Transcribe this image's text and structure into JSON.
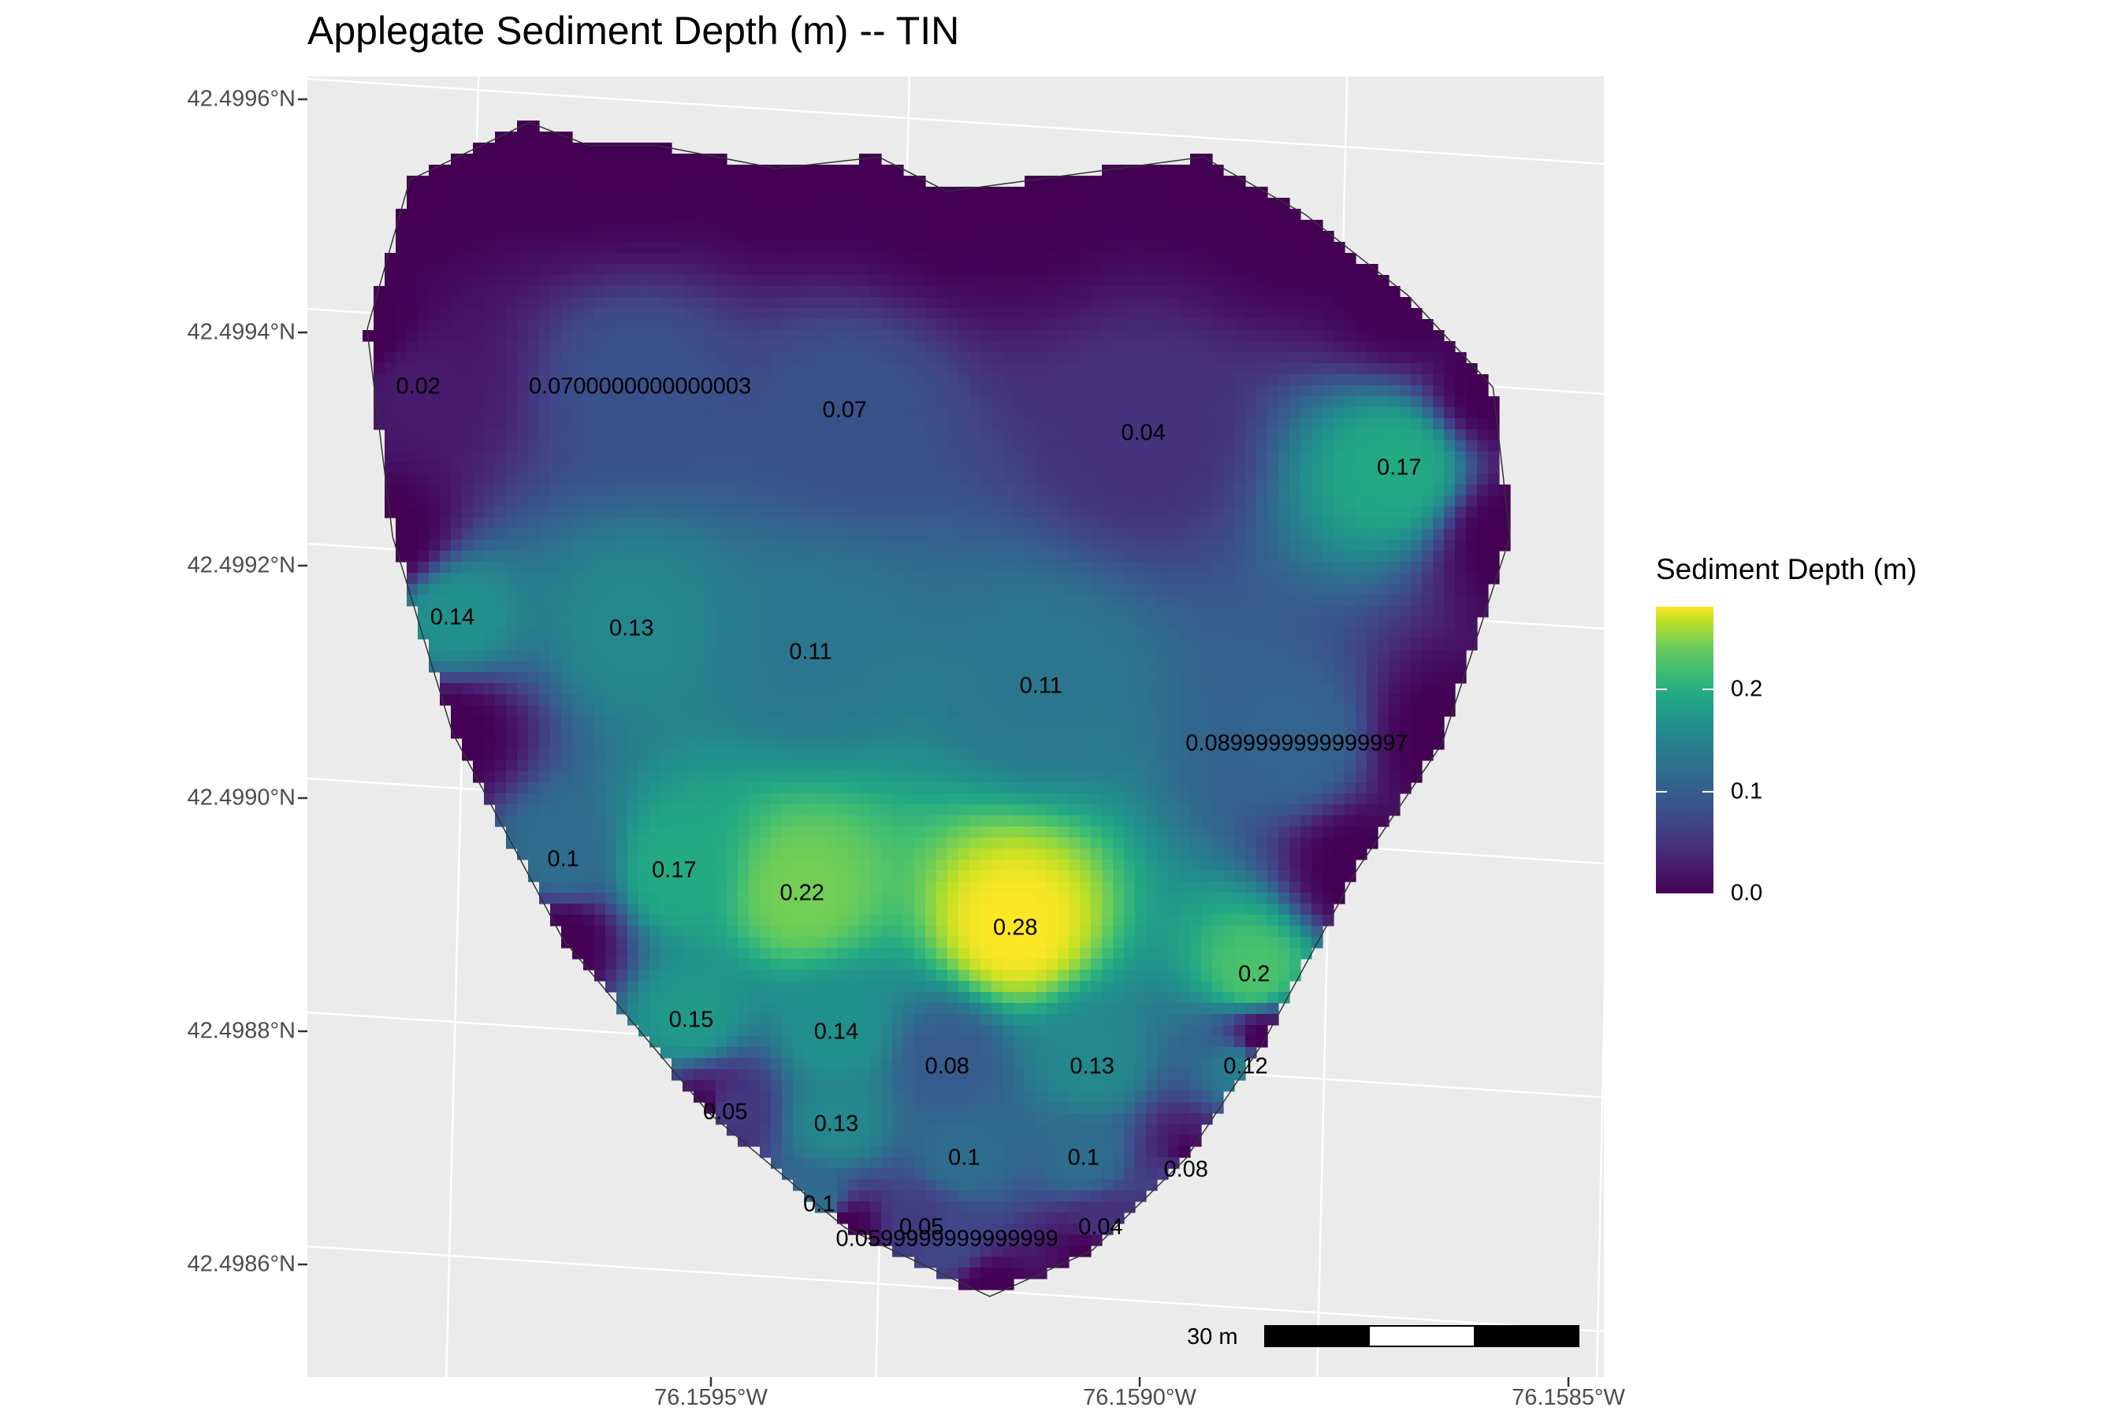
{
  "title": "Applegate Sediment Depth (m) -- TIN",
  "y_axis_ticks": [
    "42.4996°N",
    "42.4994°N",
    "42.4992°N",
    "42.4990°N",
    "42.4988°N",
    "42.4986°N"
  ],
  "x_axis_ticks": [
    "76.1595°W",
    "76.1590°W",
    "76.1585°W"
  ],
  "legend": {
    "title": "Sediment Depth (m)",
    "labels": [
      "0.2",
      "0.1",
      "0.0"
    ],
    "colormap": "viridis",
    "range": [
      0,
      0.28
    ]
  },
  "scale_bar": {
    "label": "30 m"
  },
  "colors": {
    "panel_bg": "#ebebeb",
    "grid": "#ffffff",
    "text": "#000000",
    "tick_text": "#4d4d4d"
  },
  "chart_data": {
    "type": "heatmap",
    "title": "Applegate Sediment Depth (m) -- TIN",
    "xlim": [
      -76.16005,
      -76.15853
    ],
    "ylim": [
      42.49849,
      42.49962
    ],
    "points": [
      {
        "x": -76.15992,
        "y": 42.49935,
        "label": "0.02",
        "value": 0.02
      },
      {
        "x": -76.15966,
        "y": 42.49935,
        "label": "0.0700000000000003",
        "value": 0.07
      },
      {
        "x": -76.15942,
        "y": 42.49933,
        "label": "0.07",
        "value": 0.07
      },
      {
        "x": -76.15907,
        "y": 42.49931,
        "label": "0.04",
        "value": 0.04
      },
      {
        "x": -76.15877,
        "y": 42.49928,
        "label": "0.17",
        "value": 0.17
      },
      {
        "x": -76.15988,
        "y": 42.49915,
        "label": "0.14",
        "value": 0.14
      },
      {
        "x": -76.15967,
        "y": 42.49914,
        "label": "0.13",
        "value": 0.13
      },
      {
        "x": -76.15946,
        "y": 42.49912,
        "label": "0.11",
        "value": 0.11
      },
      {
        "x": -76.15919,
        "y": 42.49909,
        "label": "0.11",
        "value": 0.11
      },
      {
        "x": -76.15889,
        "y": 42.49904,
        "label": "0.0899999999999997",
        "value": 0.09
      },
      {
        "x": -76.15975,
        "y": 42.49894,
        "label": "0.1",
        "value": 0.1
      },
      {
        "x": -76.15962,
        "y": 42.49893,
        "label": "0.17",
        "value": 0.17
      },
      {
        "x": -76.15947,
        "y": 42.49891,
        "label": "0.22",
        "value": 0.22
      },
      {
        "x": -76.15922,
        "y": 42.49888,
        "label": "0.28",
        "value": 0.28
      },
      {
        "x": -76.15894,
        "y": 42.49884,
        "label": "0.2",
        "value": 0.2
      },
      {
        "x": -76.1596,
        "y": 42.4988,
        "label": "0.15",
        "value": 0.15
      },
      {
        "x": -76.15943,
        "y": 42.49879,
        "label": "0.14",
        "value": 0.14
      },
      {
        "x": -76.1593,
        "y": 42.49876,
        "label": "0.08",
        "value": 0.08
      },
      {
        "x": -76.15913,
        "y": 42.49876,
        "label": "0.13",
        "value": 0.13
      },
      {
        "x": -76.15895,
        "y": 42.49876,
        "label": "0.12",
        "value": 0.12
      },
      {
        "x": -76.15956,
        "y": 42.49872,
        "label": "0.05",
        "value": 0.05
      },
      {
        "x": -76.15943,
        "y": 42.49871,
        "label": "0.13",
        "value": 0.13
      },
      {
        "x": -76.15928,
        "y": 42.49868,
        "label": "0.1",
        "value": 0.1
      },
      {
        "x": -76.15914,
        "y": 42.49868,
        "label": "0.1",
        "value": 0.1
      },
      {
        "x": -76.15902,
        "y": 42.49867,
        "label": "0.08",
        "value": 0.08
      },
      {
        "x": -76.15945,
        "y": 42.49864,
        "label": "0.1",
        "value": 0.1
      },
      {
        "x": -76.15933,
        "y": 42.49862,
        "label": "0.05",
        "value": 0.05
      },
      {
        "x": -76.1593,
        "y": 42.49861,
        "label": "0.0599999999999999",
        "value": 0.06
      },
      {
        "x": -76.15912,
        "y": 42.49862,
        "label": "0.04",
        "value": 0.04
      }
    ],
    "outline": [
      [
        -76.15993,
        42.49953
      ],
      [
        -76.15979,
        42.49958
      ],
      [
        -76.15972,
        42.49956
      ],
      [
        -76.15964,
        42.49956
      ],
      [
        -76.1595,
        42.49954
      ],
      [
        -76.15938,
        42.49955
      ],
      [
        -76.1593,
        42.49952
      ],
      [
        -76.1592,
        42.49953
      ],
      [
        -76.159,
        42.49955
      ],
      [
        -76.15888,
        42.4995
      ],
      [
        -76.15876,
        42.49943
      ],
      [
        -76.15866,
        42.49935
      ],
      [
        -76.15864,
        42.49922
      ],
      [
        -76.15872,
        42.49904
      ],
      [
        -76.15882,
        42.49893
      ],
      [
        -76.15893,
        42.49878
      ],
      [
        -76.15902,
        42.49868
      ],
      [
        -76.15913,
        42.4986
      ],
      [
        -76.15925,
        42.49856
      ],
      [
        -76.15942,
        42.49862
      ],
      [
        -76.15958,
        42.49872
      ],
      [
        -76.15975,
        42.49887
      ],
      [
        -76.15988,
        42.49905
      ],
      [
        -76.15995,
        42.49922
      ],
      [
        -76.15998,
        42.4994
      ]
    ]
  }
}
